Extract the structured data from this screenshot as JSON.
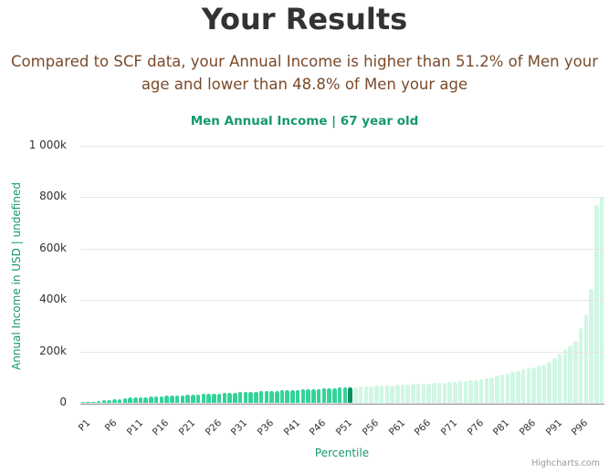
{
  "page": {
    "title": "Your Results",
    "summary": "Compared to SCF data, your Annual Income is higher than 51.2% of Men your age and lower than 48.8% of Men your age"
  },
  "colors": {
    "below": "#34d399",
    "user": "#0b8f5f",
    "above": "#cff7e3",
    "accent": "#16996b"
  },
  "chart_data": {
    "type": "bar",
    "title": "Men Annual Income | 67 year old",
    "xlabel": "Percentile",
    "ylabel": "Annual Income in USD | undefined",
    "ylim": [
      0,
      1000000
    ],
    "yticks": [
      "0",
      "200k",
      "400k",
      "600k",
      "800k",
      "1 000k"
    ],
    "xtick_labels": [
      "P1",
      "P6",
      "P11",
      "P16",
      "P21",
      "P26",
      "P31",
      "P36",
      "P41",
      "P46",
      "P51",
      "P56",
      "P61",
      "P66",
      "P71",
      "P76",
      "P81",
      "P86",
      "P91",
      "P96"
    ],
    "highlight_percentile": "P52",
    "legend": "none",
    "grid": true,
    "categories": [
      "P1",
      "P2",
      "P3",
      "P4",
      "P5",
      "P6",
      "P7",
      "P8",
      "P9",
      "P10",
      "P11",
      "P12",
      "P13",
      "P14",
      "P15",
      "P16",
      "P17",
      "P18",
      "P19",
      "P20",
      "P21",
      "P22",
      "P23",
      "P24",
      "P25",
      "P26",
      "P27",
      "P28",
      "P29",
      "P30",
      "P31",
      "P32",
      "P33",
      "P34",
      "P35",
      "P36",
      "P37",
      "P38",
      "P39",
      "P40",
      "P41",
      "P42",
      "P43",
      "P44",
      "P45",
      "P46",
      "P47",
      "P48",
      "P49",
      "P50",
      "P51",
      "P52",
      "P53",
      "P54",
      "P55",
      "P56",
      "P57",
      "P58",
      "P59",
      "P60",
      "P61",
      "P62",
      "P63",
      "P64",
      "P65",
      "P66",
      "P67",
      "P68",
      "P69",
      "P70",
      "P71",
      "P72",
      "P73",
      "P74",
      "P75",
      "P76",
      "P77",
      "P78",
      "P79",
      "P80",
      "P81",
      "P82",
      "P83",
      "P84",
      "P85",
      "P86",
      "P87",
      "P88",
      "P89",
      "P90",
      "P91",
      "P92",
      "P93",
      "P94",
      "P95",
      "P96",
      "P97",
      "P98",
      "P99",
      "P100"
    ],
    "values": [
      2000,
      3000,
      4000,
      6000,
      9000,
      12000,
      14000,
      16000,
      18000,
      20000,
      21000,
      22000,
      23000,
      24000,
      25000,
      26000,
      27000,
      28000,
      29000,
      30000,
      31000,
      32000,
      33000,
      34000,
      35000,
      36000,
      37000,
      38000,
      39000,
      40000,
      41000,
      42000,
      43000,
      44000,
      45000,
      46000,
      46500,
      47000,
      48000,
      49000,
      50000,
      51000,
      52000,
      53000,
      54000,
      55000,
      56000,
      57000,
      58000,
      59000,
      60000,
      61000,
      62000,
      63000,
      64000,
      65000,
      66000,
      67000,
      68000,
      69000,
      70000,
      71000,
      72000,
      73000,
      74000,
      75000,
      76000,
      77000,
      78000,
      79000,
      80000,
      82000,
      84000,
      86000,
      88000,
      90000,
      93000,
      96000,
      100000,
      105000,
      110000,
      115000,
      120000,
      125000,
      130000,
      135000,
      140000,
      145000,
      150000,
      160000,
      175000,
      190000,
      210000,
      225000,
      240000,
      290000,
      345000,
      445000,
      770000,
      800000
    ]
  },
  "credits": "Highcharts.com"
}
